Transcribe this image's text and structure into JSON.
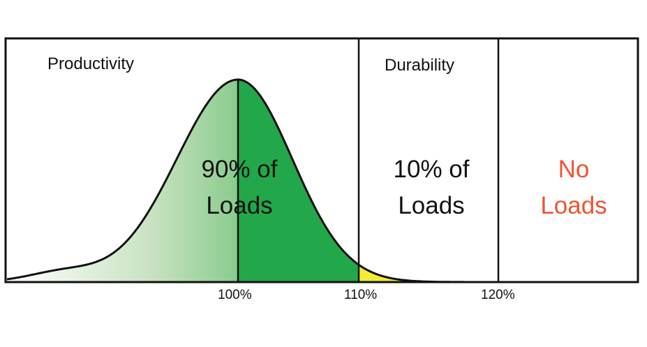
{
  "regions": {
    "productivity": {
      "label": "Productivity"
    },
    "durability": {
      "label": "Durability"
    }
  },
  "zones": {
    "productivity": {
      "line1": "90% of",
      "line2": "Loads",
      "color": "#111111"
    },
    "durability": {
      "line1": "10% of",
      "line2": "Loads",
      "color": "#111111"
    },
    "none": {
      "line1": "No",
      "line2": "Loads",
      "color": "#f0532f"
    }
  },
  "ticks": [
    "100%",
    "110%",
    "120%"
  ],
  "colors": {
    "green": "#22a84a",
    "green_light": "#e8f1e3",
    "yellow": "#f1ea1e",
    "outline": "#111111"
  }
}
